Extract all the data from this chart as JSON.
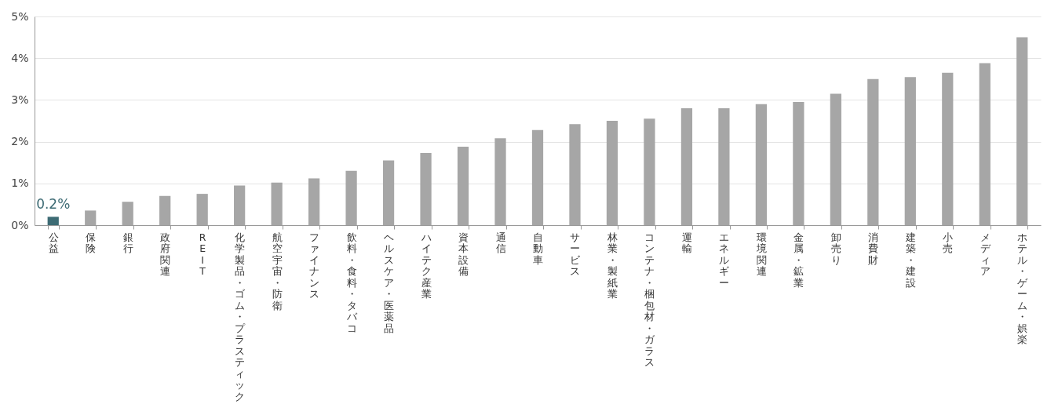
{
  "chart_data": {
    "type": "bar",
    "categories": [
      "公益",
      "保険",
      "銀行",
      "政府関連",
      "REIT",
      "化学製品・ゴム・プラスティック",
      "航空宇宙・防衛",
      "ファイナンス",
      "飲料・食料・タバコ",
      "ヘルスケア・医薬品",
      "ハイテク産業",
      "資本設備",
      "通信",
      "自動車",
      "サービス",
      "林業・製紙業",
      "コンテナ・梱包材・ガラス",
      "運輸",
      "エネルギー",
      "環境関連",
      "金属・鉱業",
      "卸売り",
      "消費財",
      "建築・建設",
      "小売",
      "メディア",
      "ホテル・ゲーム・娯楽"
    ],
    "values": [
      0.2,
      0.35,
      0.56,
      0.7,
      0.75,
      0.95,
      1.02,
      1.12,
      1.3,
      1.55,
      1.73,
      1.88,
      2.08,
      2.28,
      2.42,
      2.5,
      2.55,
      2.8,
      2.8,
      2.9,
      2.95,
      3.15,
      3.5,
      3.55,
      3.65,
      3.88,
      4.5
    ],
    "colors": [
      "#3d6b74",
      "#a6a6a6",
      "#a6a6a6",
      "#a6a6a6",
      "#a6a6a6",
      "#a6a6a6",
      "#a6a6a6",
      "#a6a6a6",
      "#a6a6a6",
      "#a6a6a6",
      "#a6a6a6",
      "#a6a6a6",
      "#a6a6a6",
      "#a6a6a6",
      "#a6a6a6",
      "#a6a6a6",
      "#a6a6a6",
      "#a6a6a6",
      "#a6a6a6",
      "#a6a6a6",
      "#a6a6a6",
      "#a6a6a6",
      "#a6a6a6",
      "#a6a6a6",
      "#a6a6a6",
      "#a6a6a6",
      "#a6a6a6"
    ],
    "value_labels": [
      "0.2%",
      null,
      null,
      null,
      null,
      null,
      null,
      null,
      null,
      null,
      null,
      null,
      null,
      null,
      null,
      null,
      null,
      null,
      null,
      null,
      null,
      null,
      null,
      null,
      null,
      null,
      null
    ],
    "ylim": [
      0,
      5
    ],
    "yticks": [
      {
        "value": 0,
        "label": "0%"
      },
      {
        "value": 1,
        "label": "1%"
      },
      {
        "value": 2,
        "label": "2%"
      },
      {
        "value": 3,
        "label": "3%"
      },
      {
        "value": 4,
        "label": "4%"
      },
      {
        "value": 5,
        "label": "5%"
      }
    ],
    "grid": true
  }
}
